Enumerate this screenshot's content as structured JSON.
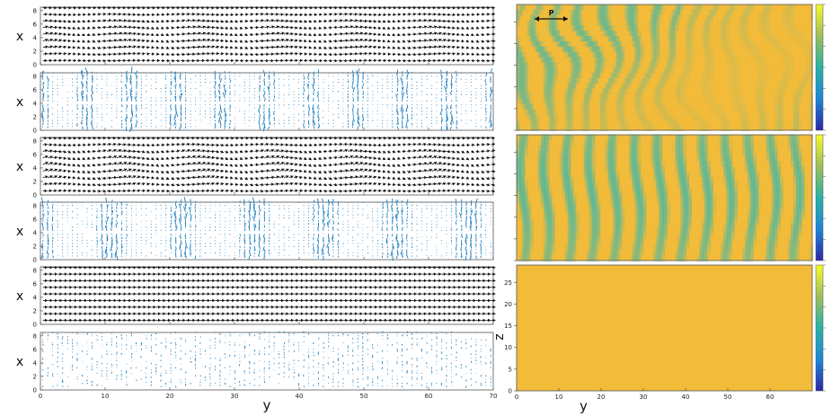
{
  "chart_data": {
    "type": "vector-field-and-heatmap",
    "left_panels": {
      "xlabel": "y",
      "ylabel": "x",
      "xlim": [
        0,
        70
      ],
      "ylim": [
        0,
        8.5
      ],
      "xticks": [
        0,
        10,
        20,
        30,
        40,
        50,
        60,
        70
      ],
      "yticks": [
        0,
        2,
        4,
        6,
        8
      ],
      "rows": [
        {
          "kind": "black-arrows",
          "pattern": "wavy"
        },
        {
          "kind": "blue-arrows",
          "pattern": "clustered"
        },
        {
          "kind": "black-arrows",
          "pattern": "wavy-strong"
        },
        {
          "kind": "blue-arrows",
          "pattern": "clustered-strong"
        },
        {
          "kind": "black-arrows",
          "pattern": "uniform"
        },
        {
          "kind": "blue-arrows",
          "pattern": "sparse"
        }
      ]
    },
    "right_panels": {
      "xlabel": "y",
      "ylabel": "z",
      "xticks": [
        0,
        10,
        20,
        30,
        40,
        50,
        60
      ],
      "yticks": [
        0,
        5,
        10,
        15,
        20,
        25
      ],
      "xlim": [
        0,
        70
      ],
      "ylim": [
        0,
        29
      ],
      "annotation": "P",
      "colors": {
        "high": "#f2bb3a",
        "mid": "#5fb896",
        "low": "#1d3fa0",
        "top": "#f8f82c"
      },
      "rows": [
        {
          "pattern": "weak-stripes",
          "stripe_count": 14
        },
        {
          "pattern": "strong-stripes",
          "stripe_count": 13
        },
        {
          "pattern": "uniform"
        }
      ]
    }
  }
}
